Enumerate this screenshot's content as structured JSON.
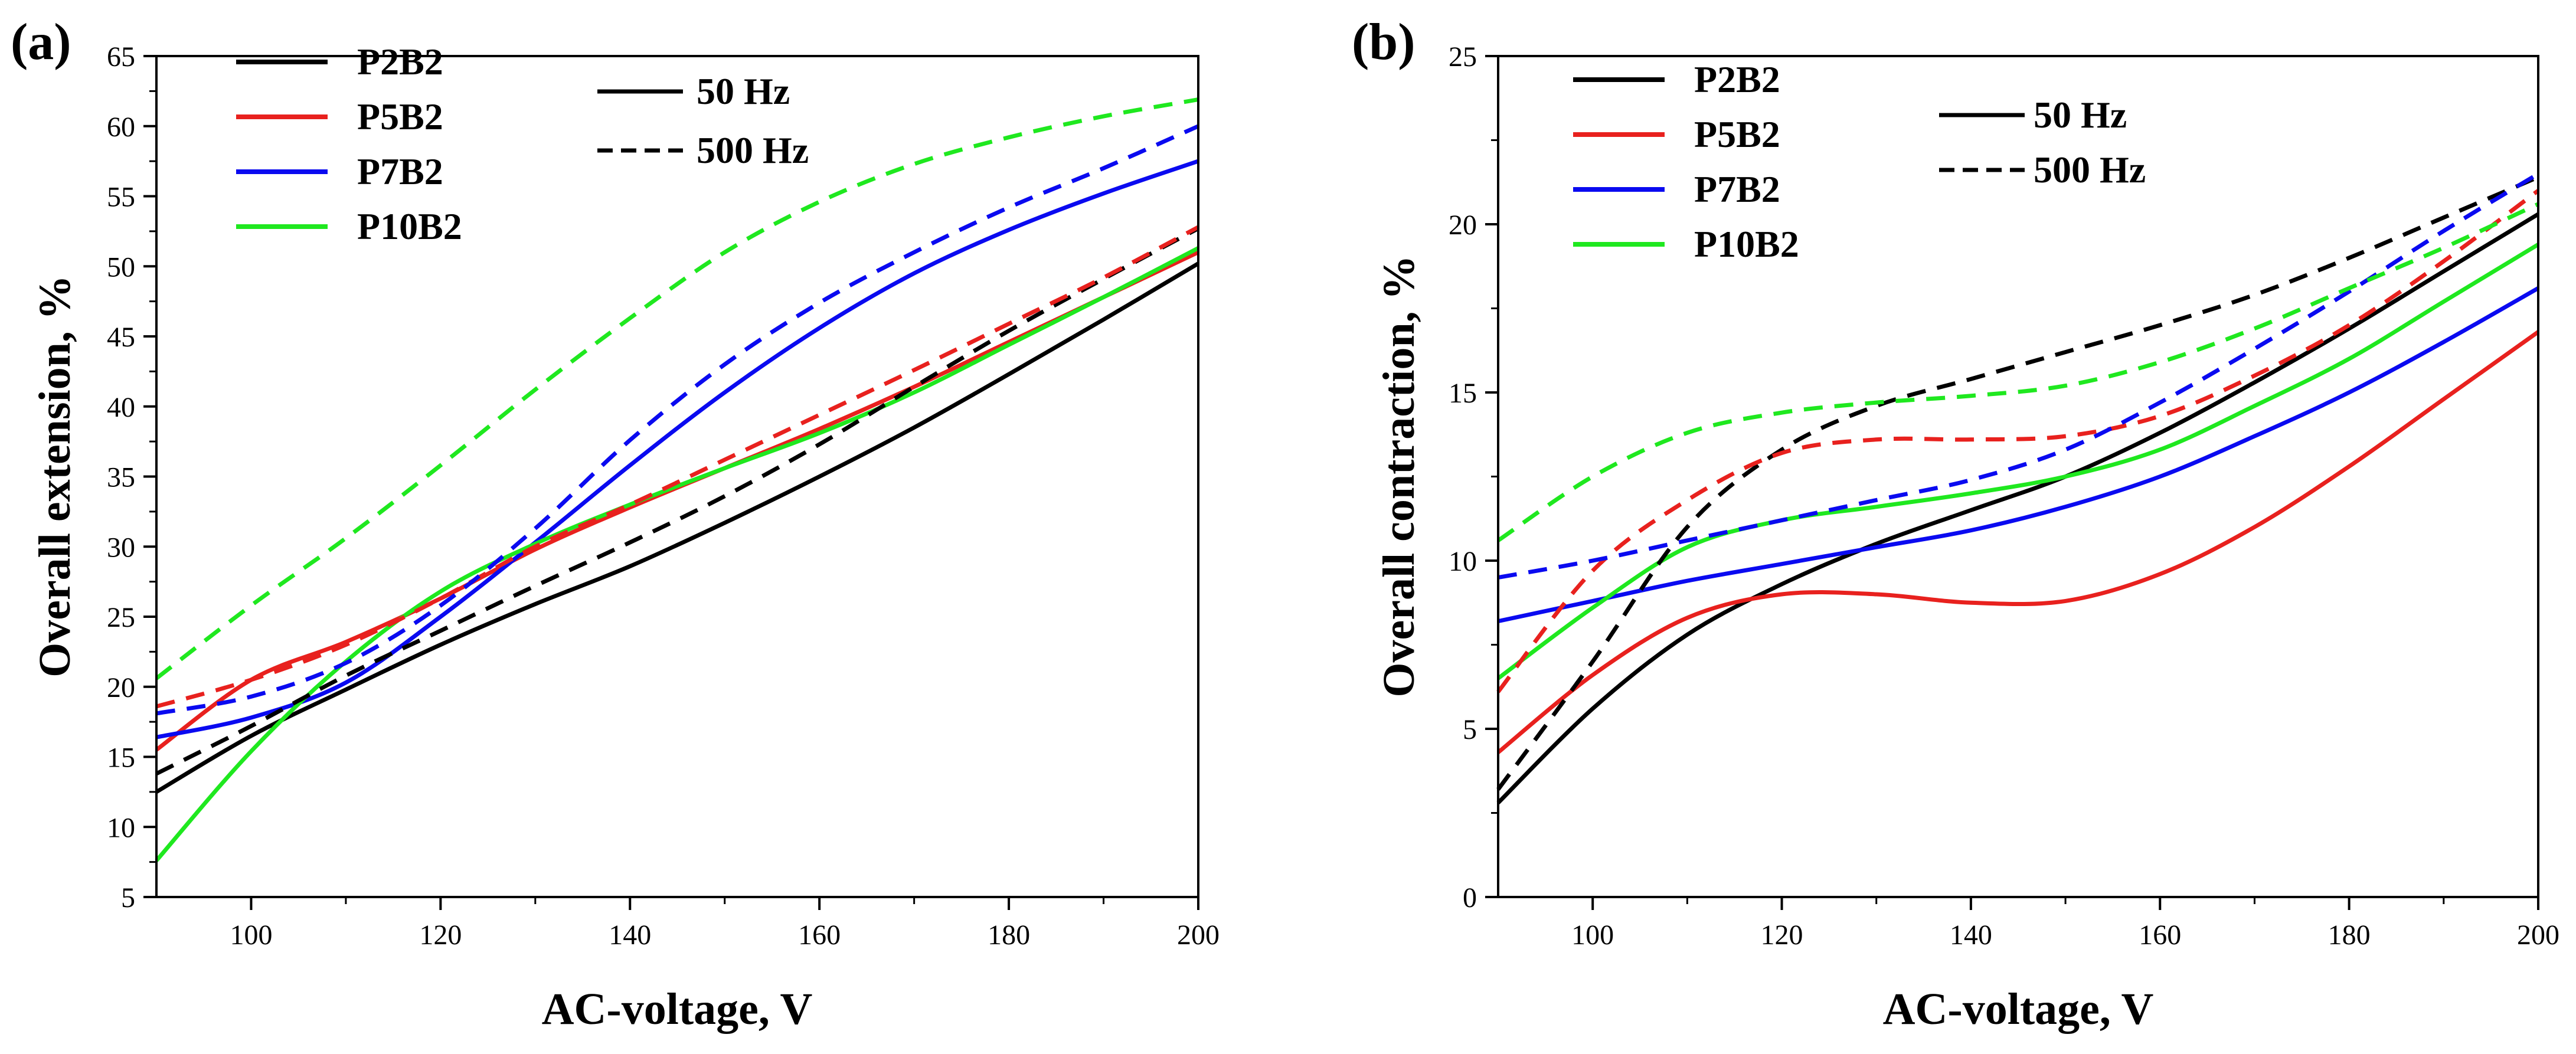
{
  "chart_data": [
    {
      "type": "line",
      "panel_label": "(a)",
      "xlabel": "AC-voltage, V",
      "ylabel": "Overall extension, %",
      "xlim": [
        90,
        200
      ],
      "ylim": [
        5,
        65
      ],
      "xticks": [
        100,
        120,
        140,
        160,
        180,
        200
      ],
      "yticks": [
        5,
        10,
        15,
        20,
        25,
        30,
        35,
        40,
        45,
        50,
        55,
        60,
        65
      ],
      "sample_legend": [
        "P2B2",
        "P5B2",
        "P7B2",
        "P10B2"
      ],
      "frequency_legend": [
        "50 Hz",
        "500 Hz"
      ],
      "series": [
        {
          "name": "P2B2",
          "frequency": "50 Hz",
          "color": "#000000",
          "dash": "solid",
          "x": [
            90,
            100,
            110,
            120,
            130,
            140,
            150,
            160,
            170,
            180,
            190,
            200
          ],
          "y": [
            12.5,
            16.5,
            19.8,
            23.0,
            25.9,
            28.6,
            31.7,
            35.0,
            38.5,
            42.3,
            46.2,
            50.2
          ]
        },
        {
          "name": "P5B2",
          "frequency": "50 Hz",
          "color": "#e8211e",
          "dash": "solid",
          "x": [
            90,
            100,
            110,
            120,
            130,
            140,
            150,
            160,
            170,
            180,
            190,
            200
          ],
          "y": [
            15.5,
            20.5,
            23.2,
            26.3,
            29.8,
            32.8,
            35.6,
            38.4,
            41.4,
            44.6,
            47.8,
            51.0
          ]
        },
        {
          "name": "P7B2",
          "frequency": "50 Hz",
          "color": "#0a0af0",
          "dash": "solid",
          "x": [
            90,
            100,
            110,
            120,
            130,
            140,
            150,
            160,
            170,
            180,
            190,
            200
          ],
          "y": [
            16.4,
            17.8,
            20.3,
            25.0,
            30.3,
            35.8,
            41.0,
            45.6,
            49.5,
            52.6,
            55.2,
            57.5
          ]
        },
        {
          "name": "P10B2",
          "frequency": "50 Hz",
          "color": "#1fe81f",
          "dash": "solid",
          "x": [
            90,
            100,
            110,
            120,
            130,
            140,
            150,
            160,
            170,
            180,
            190,
            200
          ],
          "y": [
            7.6,
            15.4,
            21.8,
            26.8,
            30.2,
            33.0,
            35.6,
            38.1,
            41.0,
            44.4,
            47.8,
            51.3
          ]
        },
        {
          "name": "P2B2",
          "frequency": "500 Hz",
          "color": "#000000",
          "dash": "dashed",
          "x": [
            90,
            100,
            110,
            120,
            130,
            140,
            150,
            160,
            170,
            180,
            190,
            200
          ],
          "y": [
            13.8,
            17.2,
            20.8,
            24.0,
            27.2,
            30.3,
            33.6,
            37.3,
            41.4,
            45.4,
            49.1,
            52.7
          ]
        },
        {
          "name": "P5B2",
          "frequency": "500 Hz",
          "color": "#e8211e",
          "dash": "dashed",
          "x": [
            90,
            100,
            110,
            120,
            130,
            140,
            150,
            160,
            170,
            180,
            190,
            200
          ],
          "y": [
            18.6,
            20.5,
            23.0,
            26.3,
            30.0,
            33.0,
            36.2,
            39.4,
            42.6,
            45.9,
            49.2,
            52.8
          ]
        },
        {
          "name": "P7B2",
          "frequency": "500 Hz",
          "color": "#0a0af0",
          "dash": "dashed",
          "x": [
            90,
            100,
            110,
            120,
            130,
            140,
            150,
            160,
            170,
            180,
            190,
            200
          ],
          "y": [
            18.1,
            19.3,
            21.7,
            25.8,
            31.3,
            37.6,
            43.0,
            47.4,
            51.0,
            54.2,
            57.0,
            60.0
          ]
        },
        {
          "name": "P10B2",
          "frequency": "500 Hz",
          "color": "#1fe81f",
          "dash": "dashed",
          "x": [
            90,
            100,
            110,
            120,
            130,
            140,
            150,
            160,
            170,
            180,
            190,
            200
          ],
          "y": [
            20.6,
            25.8,
            30.6,
            35.8,
            41.2,
            46.3,
            51.0,
            54.6,
            57.3,
            59.2,
            60.7,
            61.9
          ]
        }
      ]
    },
    {
      "type": "line",
      "panel_label": "(b)",
      "xlabel": "AC-voltage, V",
      "ylabel": "Overall contraction, %",
      "xlim": [
        90,
        200
      ],
      "ylim": [
        0,
        25
      ],
      "xticks": [
        100,
        120,
        140,
        160,
        180,
        200
      ],
      "yticks": [
        0,
        5,
        10,
        15,
        20,
        25
      ],
      "sample_legend": [
        "P2B2",
        "P5B2",
        "P7B2",
        "P10B2"
      ],
      "frequency_legend": [
        "50 Hz",
        "500 Hz"
      ],
      "series": [
        {
          "name": "P2B2",
          "frequency": "50 Hz",
          "color": "#000000",
          "dash": "solid",
          "x": [
            90,
            100,
            110,
            120,
            130,
            140,
            150,
            160,
            170,
            180,
            190,
            200
          ],
          "y": [
            2.8,
            5.6,
            7.8,
            9.3,
            10.5,
            11.5,
            12.5,
            13.8,
            15.3,
            16.9,
            18.6,
            20.3
          ]
        },
        {
          "name": "P5B2",
          "frequency": "50 Hz",
          "color": "#e8211e",
          "dash": "solid",
          "x": [
            90,
            100,
            110,
            120,
            130,
            140,
            150,
            160,
            170,
            180,
            190,
            200
          ],
          "y": [
            4.3,
            6.6,
            8.3,
            9.0,
            9.0,
            8.75,
            8.8,
            9.6,
            11.0,
            12.8,
            14.8,
            16.8
          ]
        },
        {
          "name": "P7B2",
          "frequency": "50 Hz",
          "color": "#0a0af0",
          "dash": "solid",
          "x": [
            90,
            100,
            110,
            120,
            130,
            140,
            150,
            160,
            170,
            180,
            190,
            200
          ],
          "y": [
            8.2,
            8.8,
            9.4,
            9.9,
            10.4,
            10.9,
            11.6,
            12.5,
            13.7,
            15.0,
            16.5,
            18.1
          ]
        },
        {
          "name": "P10B2",
          "frequency": "50 Hz",
          "color": "#1fe81f",
          "dash": "solid",
          "x": [
            90,
            100,
            110,
            120,
            130,
            140,
            150,
            160,
            170,
            180,
            190,
            200
          ],
          "y": [
            6.5,
            8.6,
            10.4,
            11.2,
            11.6,
            12.0,
            12.5,
            13.3,
            14.6,
            16.0,
            17.7,
            19.4
          ]
        },
        {
          "name": "P2B2",
          "frequency": "500 Hz",
          "color": "#000000",
          "dash": "dashed",
          "x": [
            90,
            100,
            110,
            120,
            130,
            140,
            150,
            160,
            170,
            180,
            190,
            200
          ],
          "y": [
            3.2,
            7.0,
            11.0,
            13.3,
            14.6,
            15.4,
            16.2,
            17.0,
            17.9,
            19.0,
            20.2,
            21.4
          ]
        },
        {
          "name": "P5B2",
          "frequency": "500 Hz",
          "color": "#e8211e",
          "dash": "dashed",
          "x": [
            90,
            100,
            110,
            120,
            130,
            140,
            150,
            160,
            170,
            180,
            190,
            200
          ],
          "y": [
            6.1,
            9.7,
            11.8,
            13.2,
            13.6,
            13.6,
            13.7,
            14.3,
            15.5,
            17.0,
            18.9,
            21.0
          ]
        },
        {
          "name": "P7B2",
          "frequency": "500 Hz",
          "color": "#0a0af0",
          "dash": "dashed",
          "x": [
            90,
            100,
            110,
            120,
            130,
            140,
            150,
            160,
            170,
            180,
            190,
            200
          ],
          "y": [
            9.5,
            10.0,
            10.6,
            11.2,
            11.8,
            12.4,
            13.3,
            14.7,
            16.3,
            18.0,
            19.8,
            21.5
          ]
        },
        {
          "name": "P10B2",
          "frequency": "500 Hz",
          "color": "#1fe81f",
          "dash": "dashed",
          "x": [
            90,
            100,
            110,
            120,
            130,
            140,
            150,
            160,
            170,
            180,
            190,
            200
          ],
          "y": [
            10.6,
            12.5,
            13.8,
            14.4,
            14.7,
            14.9,
            15.2,
            15.9,
            16.9,
            18.1,
            19.3,
            20.6
          ]
        }
      ]
    }
  ]
}
